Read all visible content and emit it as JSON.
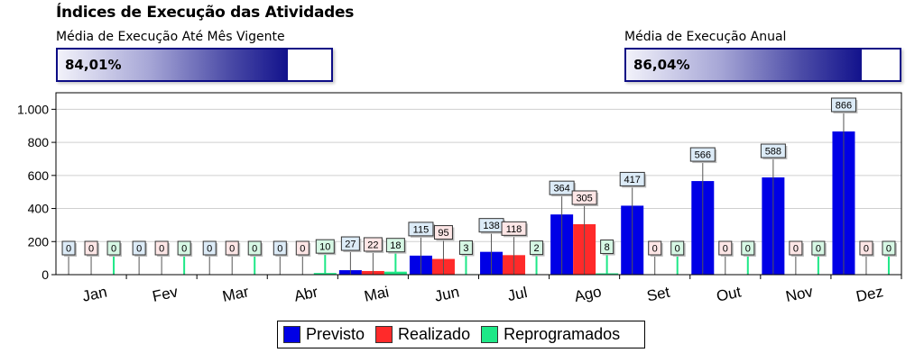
{
  "header": {
    "title": "Índices de Execução das Atividades"
  },
  "gauges": [
    {
      "label": "Média de Execução Até Mês Vigente",
      "value_text": "84,01%",
      "value": 84.01
    },
    {
      "label": "Média de Execução Anual",
      "value_text": "86,04%",
      "value": 86.04
    }
  ],
  "colors": {
    "previsto": "#0000e6",
    "realizado": "#ff2a2a",
    "reprogramados": "#1ee887",
    "gauge_border": "#0c0c85"
  },
  "chart_data": {
    "type": "bar",
    "categories": [
      "Jan",
      "Fev",
      "Mar",
      "Abr",
      "Mai",
      "Jun",
      "Jul",
      "Ago",
      "Set",
      "Out",
      "Nov",
      "Dez"
    ],
    "series": [
      {
        "name": "Previsto",
        "values": [
          0,
          0,
          0,
          0,
          27,
          115,
          138,
          364,
          417,
          566,
          588,
          866
        ]
      },
      {
        "name": "Realizado",
        "values": [
          0,
          0,
          0,
          0,
          22,
          95,
          118,
          305,
          0,
          0,
          0,
          0
        ]
      },
      {
        "name": "Reprogramados",
        "values": [
          0,
          0,
          0,
          10,
          18,
          3,
          2,
          8,
          0,
          0,
          0,
          0
        ]
      }
    ],
    "ylim": [
      0,
      1100
    ],
    "yticks": [
      0,
      200,
      400,
      600,
      800,
      1000
    ],
    "ytick_labels": [
      "0",
      "200",
      "400",
      "600",
      "800",
      "1.000"
    ],
    "grid": true,
    "legend": "bottom",
    "title": "",
    "xlabel": "",
    "ylabel": ""
  }
}
